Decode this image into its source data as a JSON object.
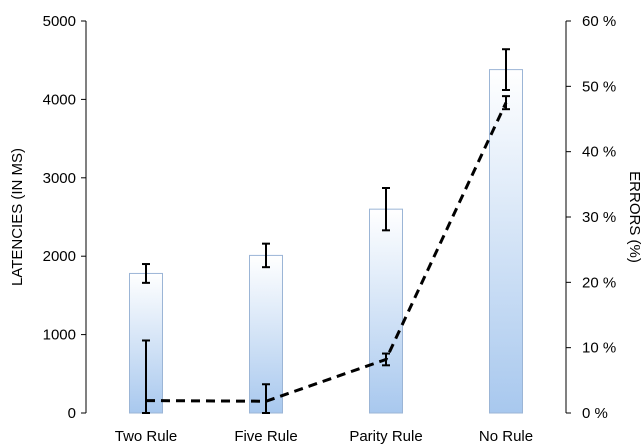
{
  "chart_data": {
    "type": "bar",
    "categories": [
      "Two Rule",
      "Five Rule",
      "Parity Rule",
      "No Rule"
    ],
    "title": "",
    "xlabel": "",
    "ylabel": "LATENCIES (IN MS)",
    "ylim": [
      0,
      5000
    ],
    "yticks": [
      "0",
      "1000",
      "2000",
      "3000",
      "4000",
      "5000"
    ],
    "y2label": "ERRORS (%)",
    "y2lim": [
      0,
      60
    ],
    "y2ticks": [
      "0 %",
      "10 %",
      "20 %",
      "30 %",
      "40 %",
      "50 %",
      "60 %"
    ],
    "series": [
      {
        "type": "bar",
        "axis": "left",
        "values": [
          1780,
          2010,
          2600,
          4380
        ],
        "error": [
          120,
          150,
          270,
          260
        ]
      },
      {
        "type": "line",
        "axis": "right",
        "style": "dashed",
        "values": [
          1.9,
          1.8,
          8.2,
          47.5
        ],
        "error": [
          9.2,
          2.6,
          0.9,
          1.0
        ]
      }
    ],
    "colors": {
      "bar_top": "#ffffff",
      "bar_bottom": "#a8c8ee",
      "bar_stroke": "#9bb5d6",
      "line": "#000000"
    }
  }
}
